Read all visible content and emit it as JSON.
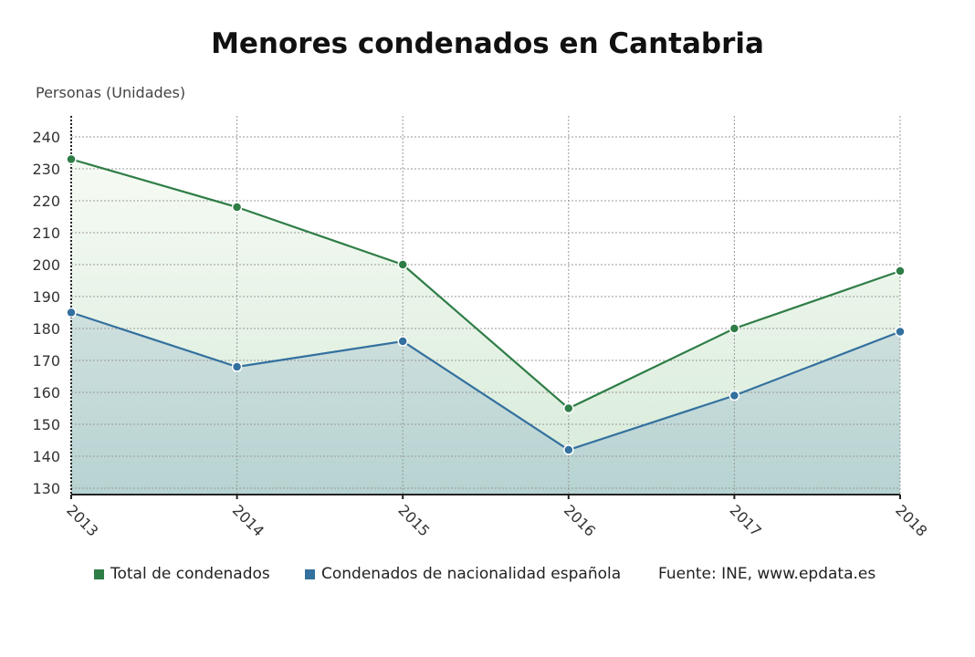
{
  "chart_data": {
    "type": "area",
    "title": "Menores condenados en Cantabria",
    "ylabel": "Personas (Unidades)",
    "xlabel": "",
    "categories": [
      "2013",
      "2014",
      "2015",
      "2016",
      "2017",
      "2018"
    ],
    "ylim": [
      130,
      240
    ],
    "yticks": [
      130,
      140,
      150,
      160,
      170,
      180,
      190,
      200,
      210,
      220,
      230,
      240
    ],
    "grid": true,
    "legend_position": "bottom",
    "series": [
      {
        "name": "Total de condenados",
        "color": "#2e7d46",
        "values": [
          233,
          218,
          200,
          155,
          180,
          198
        ]
      },
      {
        "name": "Condenados de nacionalidad española",
        "color": "#33709e",
        "values": [
          185,
          168,
          176,
          142,
          159,
          179
        ]
      }
    ],
    "source": "Fuente: INE, www.epdata.es"
  }
}
